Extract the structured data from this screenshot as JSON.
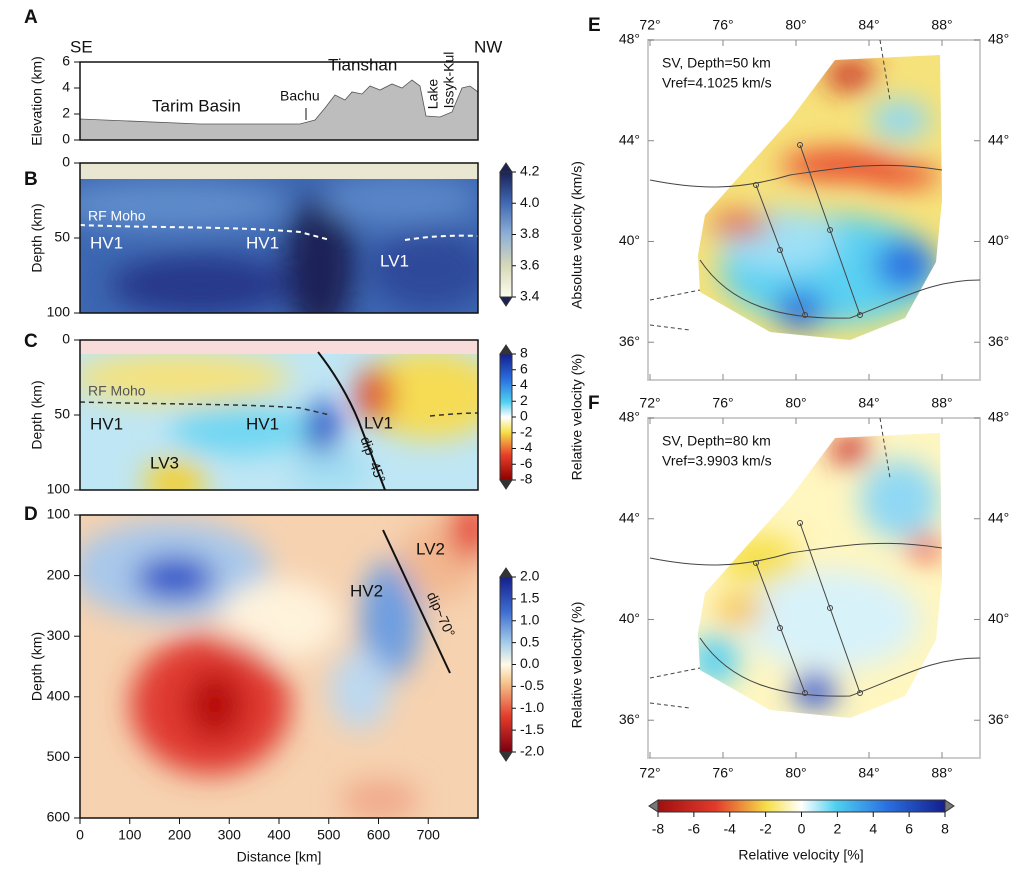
{
  "panels": {
    "A": {
      "letter": "A",
      "ylabel": "Elevation (km)",
      "ylim": [
        0,
        6
      ],
      "yticks": [
        0,
        2,
        4,
        6
      ],
      "labels": [
        "SE",
        "NW",
        "Tarim Basin",
        "Bachu",
        "Tianshan",
        "Lake",
        "Issyk-Kul"
      ]
    },
    "B": {
      "letter": "B",
      "ylabel": "Depth (km)",
      "ylim": [
        0,
        100
      ],
      "yticks": [
        0,
        50,
        100
      ],
      "labels": [
        "RF Moho",
        "HV1",
        "HV1",
        "LV1"
      ],
      "colorbar": {
        "label": "Absolute velocity (km/s)",
        "lim": [
          3.4,
          4.2
        ],
        "ticks": [
          3.4,
          3.6,
          3.8,
          {
            "value": 4,
            "label": "4.0"
          },
          4.2
        ]
      }
    },
    "C": {
      "letter": "C",
      "ylabel": "Depth (km)",
      "ylim": [
        0,
        100
      ],
      "yticks": [
        0,
        50,
        100
      ],
      "labels": [
        "RF Moho",
        "HV1",
        "HV1",
        "LV1",
        "LV3",
        "dip~45°"
      ],
      "colorbar": {
        "label": "Relative velocity (%)",
        "lim": [
          -8,
          8
        ],
        "ticks": [
          8,
          6,
          4,
          2,
          0,
          -2,
          -4,
          -6,
          -8
        ]
      }
    },
    "D": {
      "letter": "D",
      "ylabel": "Depth (km)",
      "xlabel": "Distance [km]",
      "ylim": [
        100,
        600
      ],
      "yticks": [
        100,
        200,
        300,
        400,
        500,
        600
      ],
      "xlim": [
        0,
        800
      ],
      "xticks": [
        0,
        100,
        200,
        300,
        400,
        500,
        600,
        700
      ],
      "labels": [
        "LV2",
        "HV2",
        "dip~70°"
      ],
      "colorbar": {
        "label": "Relative velocity (%)",
        "lim": [
          -2,
          2
        ],
        "ticks": [
          {
            "value": 2,
            "label": "2.0"
          },
          1.5,
          {
            "value": 1,
            "label": "1.0"
          },
          0.5,
          {
            "value": 0,
            "label": "0.0"
          },
          -0.5,
          {
            "value": -1,
            "label": "-1.0"
          },
          -1.5,
          {
            "value": -2,
            "label": "-2.0"
          }
        ]
      }
    },
    "E": {
      "letter": "E",
      "title": "SV, Depth=50 km",
      "subtitle": "Vref=4.1025 km/s",
      "xlim": [
        72,
        90
      ],
      "ylim": [
        34.5,
        48
      ],
      "xticks": [
        {
          "value": 72,
          "label": "72°"
        },
        {
          "value": 76,
          "label": "76°"
        },
        {
          "value": 80,
          "label": "80°"
        },
        {
          "value": 84,
          "label": "84°"
        },
        {
          "value": 88,
          "label": "88°"
        }
      ],
      "yticks": [
        {
          "value": 48,
          "label": "48°"
        },
        {
          "value": 44,
          "label": "44°"
        },
        {
          "value": 40,
          "label": "40°"
        },
        {
          "value": 36,
          "label": "36°"
        }
      ]
    },
    "F": {
      "letter": "F",
      "title": "SV, Depth=80 km",
      "subtitle": "Vref=3.9903 km/s",
      "xlim": [
        72,
        90
      ],
      "ylim": [
        34.5,
        48
      ],
      "xticks": [
        {
          "value": 72,
          "label": "72°"
        },
        {
          "value": 76,
          "label": "76°"
        },
        {
          "value": 80,
          "label": "80°"
        },
        {
          "value": 84,
          "label": "84°"
        },
        {
          "value": 88,
          "label": "88°"
        }
      ],
      "yticks": [
        {
          "value": 48,
          "label": "48°"
        },
        {
          "value": 44,
          "label": "44°"
        },
        {
          "value": 40,
          "label": "40°"
        },
        {
          "value": 36,
          "label": "36°"
        }
      ]
    },
    "map_colorbar": {
      "label": "Relative velocity [%]",
      "lim": [
        -8,
        8
      ],
      "ticks": [
        -8,
        -6,
        -4,
        -2,
        0,
        2,
        4,
        6,
        8
      ]
    }
  }
}
